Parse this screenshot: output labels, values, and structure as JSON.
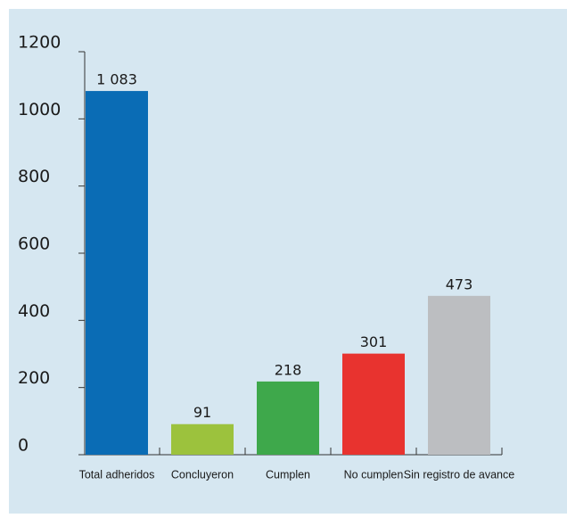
{
  "chart_data": {
    "type": "bar",
    "categories": [
      "Total adheridos",
      "Concluyeron",
      "Cumplen",
      "No cumplen",
      "Sin registro de avance"
    ],
    "values": [
      1083,
      91,
      218,
      301,
      473
    ],
    "value_labels": [
      "1 083",
      "91",
      "218",
      "301",
      "473"
    ],
    "colors": [
      "#0a6cb5",
      "#9cc23d",
      "#3ea84b",
      "#e8332f",
      "#bcbec1"
    ],
    "ylim": [
      0,
      1200
    ],
    "yticks": [
      0,
      200,
      400,
      600,
      800,
      1000,
      1200
    ],
    "grid": false
  }
}
